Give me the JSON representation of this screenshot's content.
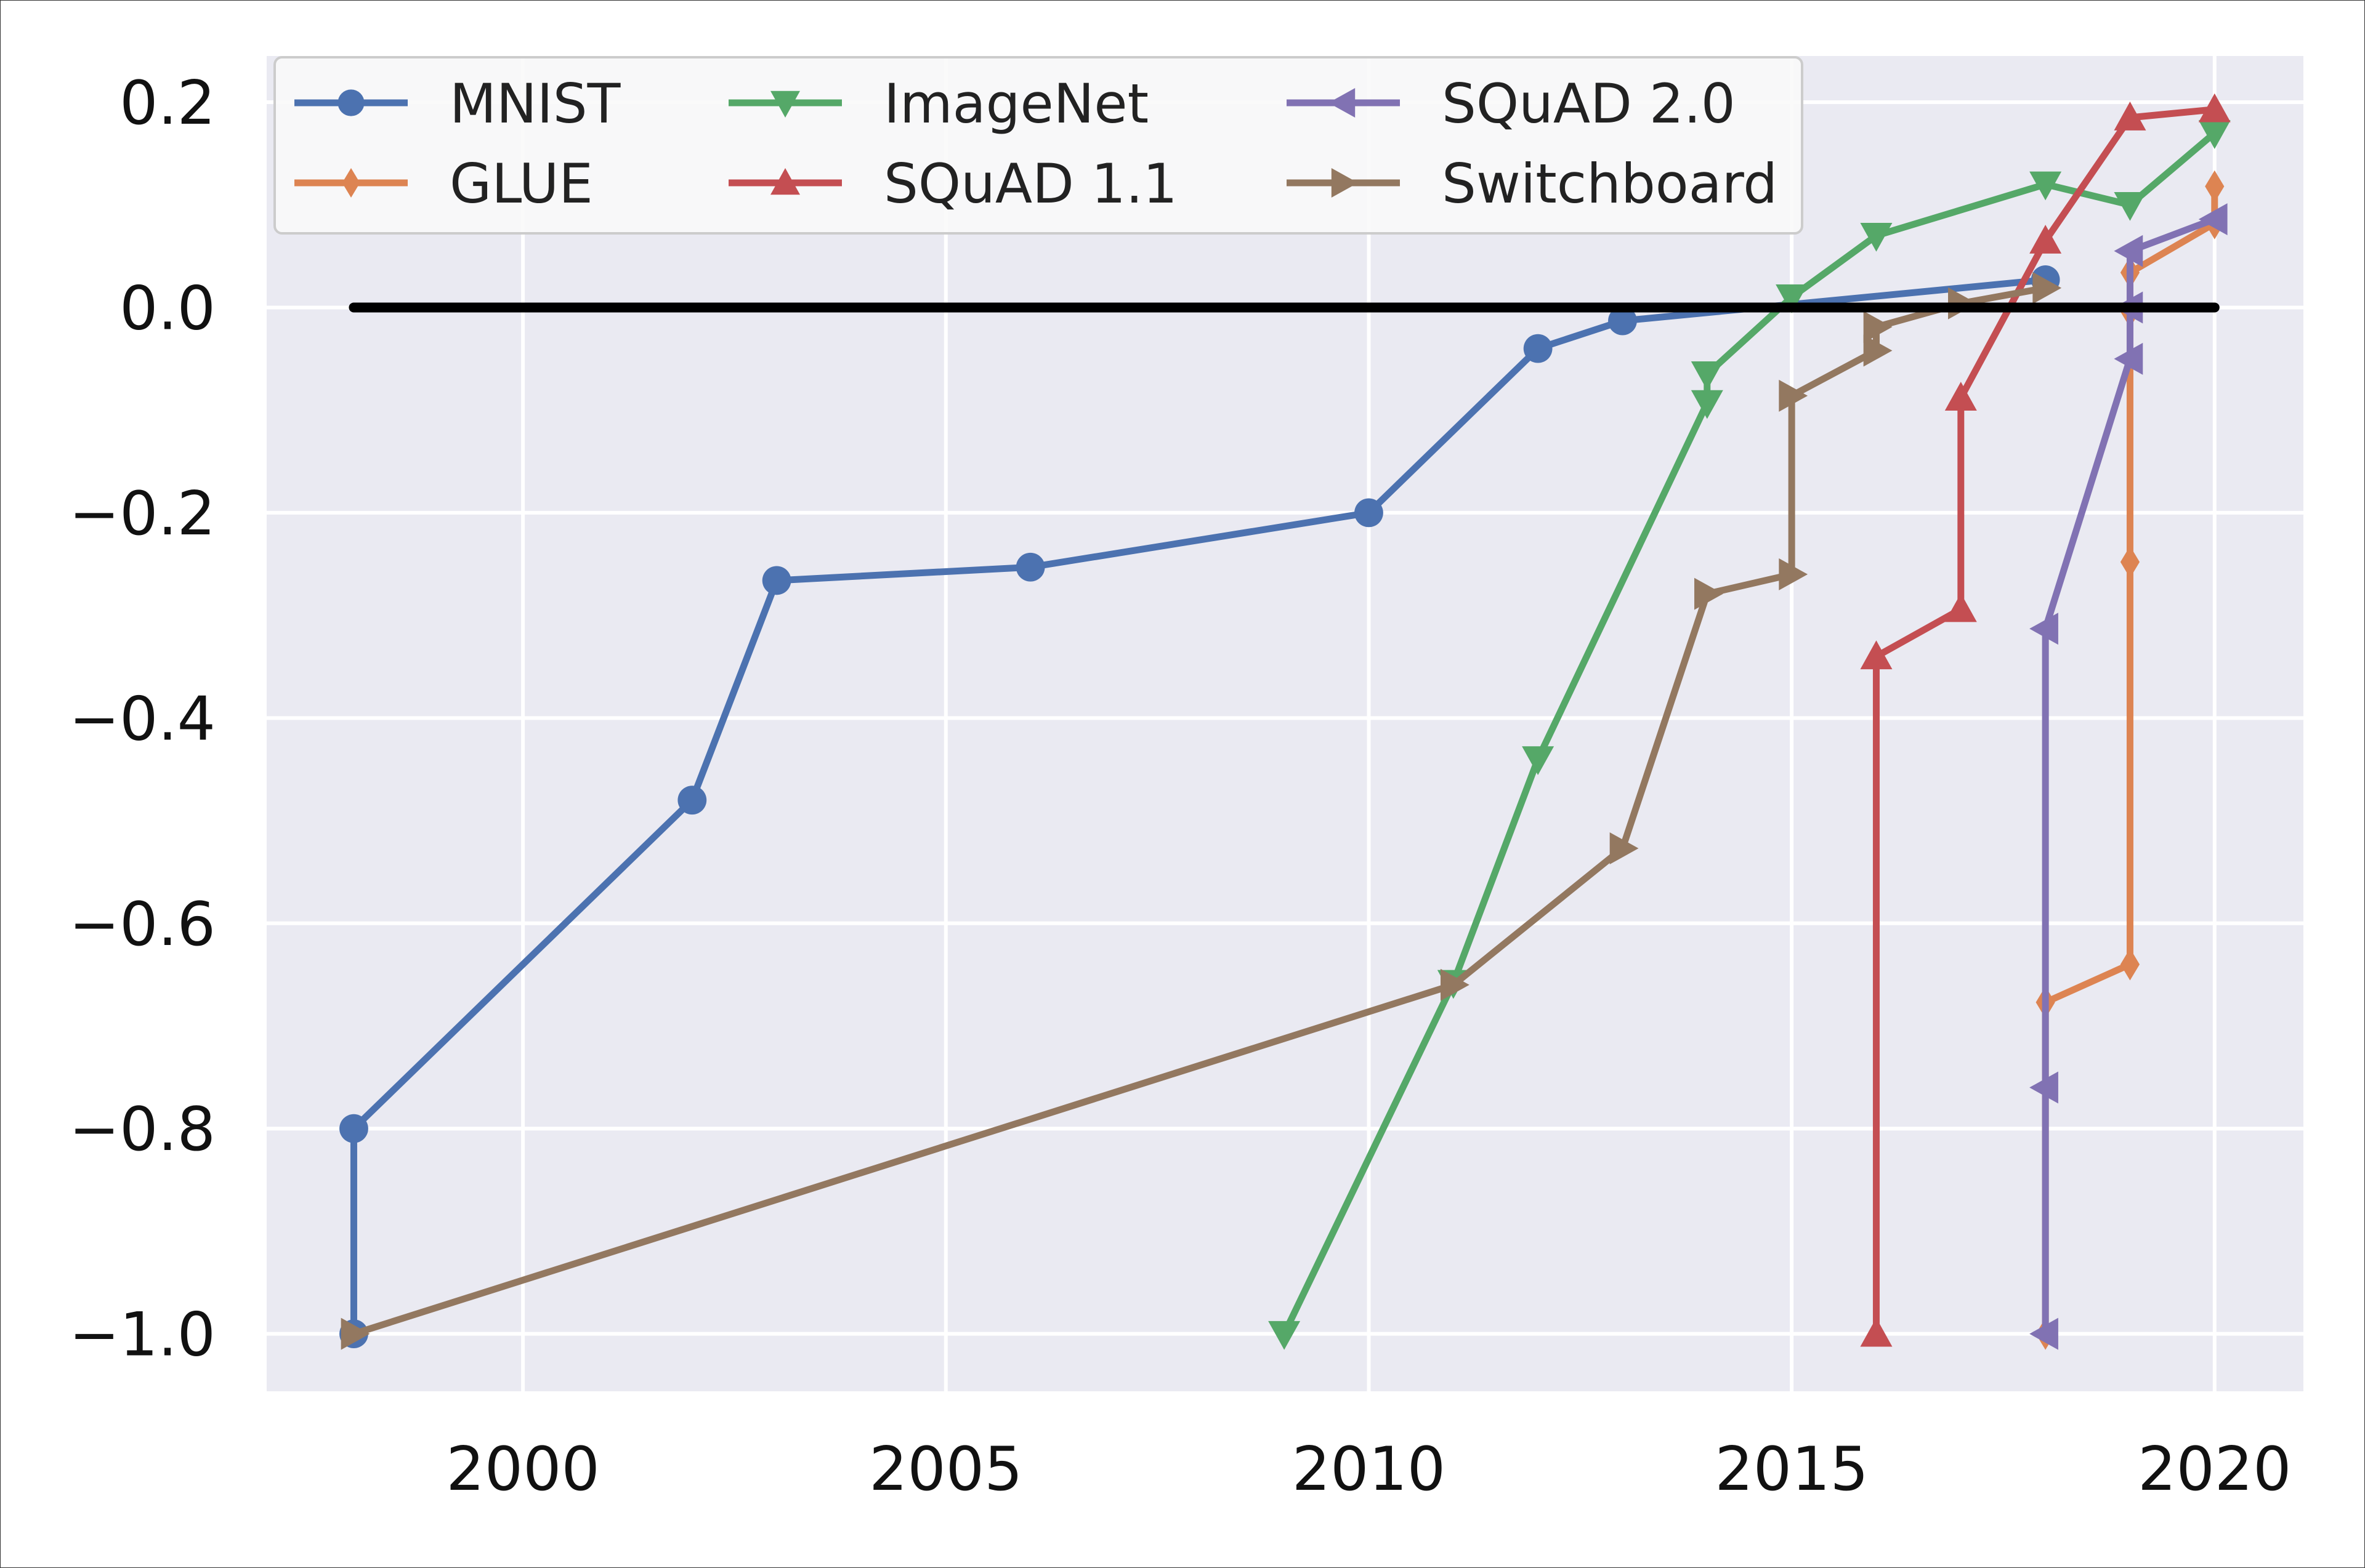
{
  "chart_data": {
    "type": "line",
    "title": "",
    "xlabel": "",
    "ylabel": "",
    "xlim": [
      1996.97,
      2021.05
    ],
    "ylim": [
      -1.056,
      0.245
    ],
    "xticks": [
      2000,
      2005,
      2010,
      2015,
      2020
    ],
    "xtick_labels": [
      "2000",
      "2005",
      "2010",
      "2015",
      "2020"
    ],
    "yticks": [
      0.2,
      0.0,
      -0.2,
      -0.4,
      -0.6,
      -0.8,
      -1.0
    ],
    "ytick_labels": [
      "0.2",
      "0.0",
      "−0.2",
      "−0.4",
      "−0.6",
      "−0.8",
      "−1.0"
    ],
    "grid": true,
    "background": "#EAEAF2",
    "legend_placement": "top-left",
    "reference_line": {
      "y": 0.0,
      "x": [
        1998,
        2020
      ],
      "color": "#000000"
    },
    "series": [
      {
        "name": "MNIST",
        "color": "#4C72B0",
        "marker": "circle",
        "x": [
          1998,
          1998,
          2002,
          2003,
          2006,
          2010,
          2012,
          2013,
          2018
        ],
        "y": [
          -1.0,
          -0.8,
          -0.48,
          -0.266,
          -0.253,
          -0.2,
          -0.04,
          -0.013,
          0.027
        ]
      },
      {
        "name": "GLUE",
        "color": "#DD8452",
        "marker": "diamond",
        "x": [
          2018,
          2018,
          2019,
          2019,
          2019,
          2019,
          2020,
          2020
        ],
        "y": [
          -1.0,
          -0.677,
          -0.64,
          -0.248,
          -0.004,
          0.034,
          0.082,
          0.118
        ]
      },
      {
        "name": "ImageNet",
        "color": "#55A868",
        "marker": "triangle-down",
        "x": [
          2009,
          2011,
          2012,
          2014,
          2014,
          2015,
          2016,
          2018,
          2019,
          2020
        ],
        "y": [
          -1.0,
          -0.658,
          -0.44,
          -0.093,
          -0.065,
          0.01,
          0.07,
          0.12,
          0.1,
          0.17
        ]
      },
      {
        "name": "SQuAD 1.1",
        "color": "#C44E52",
        "marker": "triangle-up",
        "x": [
          2016,
          2016,
          2017,
          2017,
          2018,
          2019,
          2020
        ],
        "y": [
          -1.0,
          -0.34,
          -0.294,
          -0.088,
          0.065,
          0.185,
          0.193
        ]
      },
      {
        "name": "SQuAD 2.0",
        "color": "#8172B3",
        "marker": "triangle-left",
        "x": [
          2018,
          2018,
          2018,
          2019,
          2019,
          2019,
          2020
        ],
        "y": [
          -1.0,
          -0.76,
          -0.313,
          -0.05,
          0.0,
          0.055,
          0.086
        ]
      },
      {
        "name": "Switchboard",
        "color": "#937860",
        "marker": "triangle-right",
        "x": [
          1998,
          2011,
          2013,
          2014,
          2015,
          2015,
          2016,
          2016,
          2017,
          2018
        ],
        "y": [
          -1.0,
          -0.66,
          -0.527,
          -0.279,
          -0.26,
          -0.086,
          -0.042,
          -0.019,
          0.004,
          0.019
        ]
      }
    ]
  }
}
